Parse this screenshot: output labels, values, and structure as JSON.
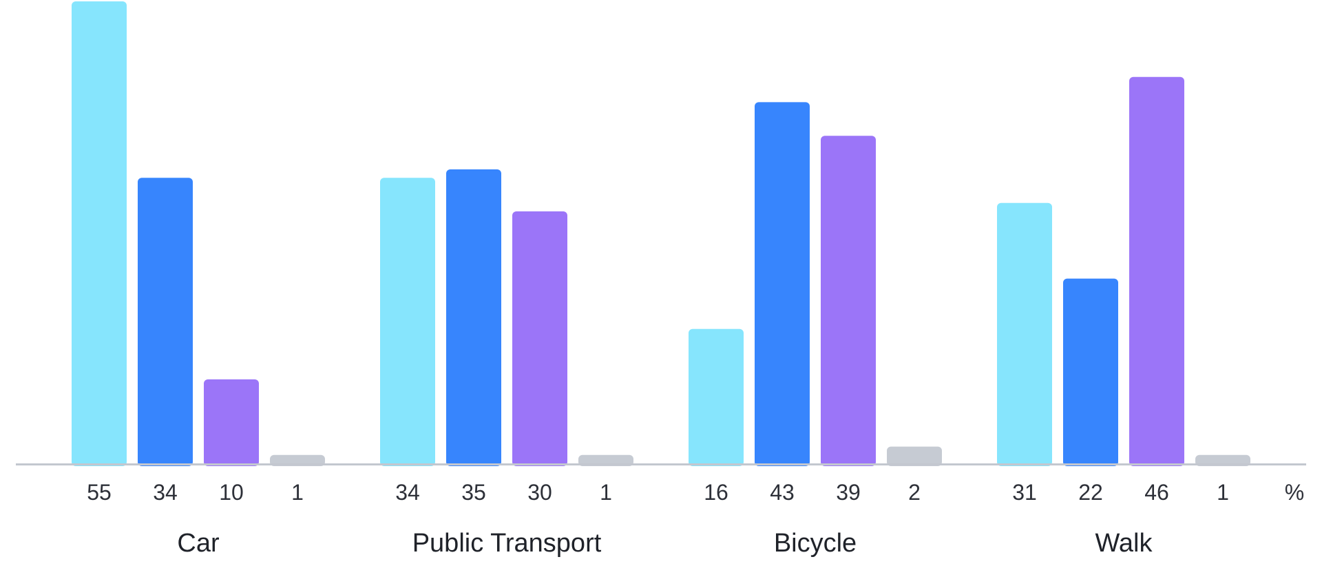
{
  "chart_data": {
    "type": "bar",
    "categories": [
      "Car",
      "Public Transport",
      "Bicycle",
      "Walk"
    ],
    "series": [
      {
        "values": [
          55,
          34,
          16,
          31
        ],
        "color": "#86e5fd"
      },
      {
        "values": [
          34,
          35,
          43,
          22
        ],
        "color": "#3785fd"
      },
      {
        "values": [
          10,
          30,
          39,
          46
        ],
        "color": "#9b75f8"
      },
      {
        "values": [
          1,
          1,
          2,
          1
        ],
        "color": "#c6cbd3"
      }
    ],
    "unit": "%",
    "ylim": [
      0,
      55
    ],
    "grid": false,
    "legend": "none",
    "axis_color": "#c3c7cf"
  }
}
